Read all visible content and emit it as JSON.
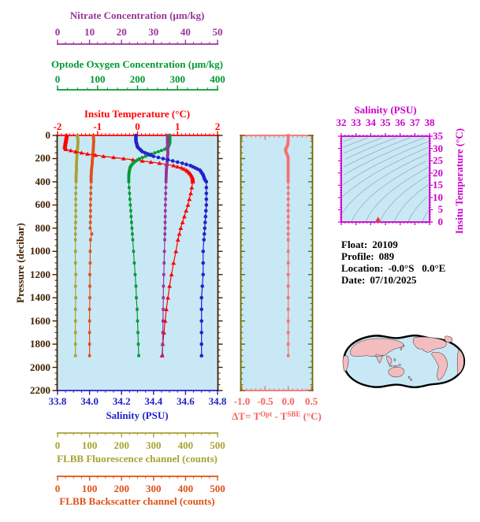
{
  "colors": {
    "temperature": "#FF0000",
    "salinity": "#2222CC",
    "oxygen": "#009933",
    "nitrate": "#993399",
    "fluorescence": "#A9A232",
    "backscatter": "#E05115",
    "pressure_axis": "#402000",
    "delta": "#F7706E",
    "delta_title": "#F4625F",
    "delta_frame": "#6A6A00",
    "magenta": "#CC00CC",
    "plot_bg": "#C9E8F6",
    "land": "#F3BCBE",
    "contour": "#9FB6BE",
    "ts_marker": "#E73558",
    "map_outline": "#000000"
  },
  "axes": {
    "nitrate": {
      "title": "Nitrate Concentration (μm/kg)",
      "ticks": [
        "0",
        "10",
        "20",
        "30",
        "40",
        "50"
      ],
      "range": [
        0,
        50
      ],
      "minor_step": 2.5
    },
    "oxygen": {
      "title": "Optode Oxygen Concentration (μm/kg)",
      "ticks": [
        "0",
        "100",
        "200",
        "300",
        "400"
      ],
      "range": [
        0,
        400
      ],
      "minor_step": 25
    },
    "temperature": {
      "title": "Insitu Temperature (°C)",
      "ticks": [
        "-2",
        "-1",
        "0",
        "1",
        "2"
      ],
      "range": [
        -2,
        2
      ],
      "minor_step": 0.1
    },
    "salinity": {
      "title": "Salinity (PSU)",
      "ticks": [
        "33.8",
        "34.0",
        "34.2",
        "34.4",
        "34.6",
        "34.8"
      ],
      "range": [
        33.8,
        34.8
      ],
      "minor_step": 0.05
    },
    "pressure": {
      "title": "Pressure (decibar)",
      "ticks": [
        "0",
        "200",
        "400",
        "600",
        "800",
        "1000",
        "1200",
        "1400",
        "1600",
        "1800",
        "2000",
        "2200"
      ],
      "range": [
        0,
        2200
      ],
      "minor_step": 50
    },
    "fluorescence": {
      "title": "FLBB Fluorescence channel (counts)",
      "ticks": [
        "0",
        "100",
        "200",
        "300",
        "400",
        "500"
      ],
      "range": [
        0,
        500
      ],
      "minor_step": 25
    },
    "backscatter": {
      "title": "FLBB Backscatter channel (counts)",
      "ticks": [
        "0",
        "100",
        "200",
        "300",
        "400",
        "500"
      ],
      "range": [
        0,
        500
      ],
      "minor_step": 25
    },
    "delta": {
      "title_parts": {
        "p1": "ΔT= T",
        "sup1": "Opt",
        "p2": " - T",
        "sup2": "SBE",
        "p3": " (°C)"
      },
      "ticks": [
        "-1.0",
        "-0.5",
        "0.0",
        "0.5"
      ],
      "range": [
        -1.0,
        0.5
      ],
      "minor_step": 0.1
    },
    "ts_salinity": {
      "title": "Salinity (PSU)",
      "ticks": [
        "32",
        "33",
        "34",
        "35",
        "36",
        "37",
        "38"
      ],
      "range": [
        32,
        38
      ],
      "minor_step": 0.25
    },
    "ts_temperature": {
      "title": "Insitu Temperature (°C)",
      "ticks": [
        "0",
        "5",
        "10",
        "15",
        "20",
        "25",
        "30",
        "35"
      ],
      "range": [
        0,
        35
      ],
      "minor_step": 1
    }
  },
  "float_info": {
    "rows": [
      {
        "label": "Float:",
        "value": "20109"
      },
      {
        "label": "Profile:",
        "value": "089"
      },
      {
        "label": "Location:",
        "value": "-0.0°S   0.0°E"
      },
      {
        "label": "Date:",
        "value": "07/10/2025"
      }
    ]
  },
  "chart_data": [
    {
      "type": "line",
      "title": "Float profile vs pressure",
      "y_axis": {
        "label": "Pressure (decibar)",
        "range": [
          0,
          2200
        ]
      },
      "legend_position": "none",
      "grid": false,
      "series": [
        {
          "name": "FLBB Fluorescence channel (counts)",
          "color_key": "fluorescence",
          "marker": "square",
          "x_range": [
            0,
            500
          ],
          "points": [
            [
              0,
              62
            ],
            [
              50,
              64
            ],
            [
              100,
              63
            ],
            [
              150,
              61
            ],
            [
              200,
              60
            ],
            [
              250,
              59
            ],
            [
              300,
              59
            ],
            [
              350,
              58
            ],
            [
              400,
              58
            ],
            [
              500,
              57
            ],
            [
              600,
              57
            ],
            [
              700,
              57
            ],
            [
              800,
              56
            ],
            [
              900,
              56
            ],
            [
              1000,
              56
            ],
            [
              1100,
              56
            ],
            [
              1200,
              57
            ],
            [
              1300,
              56
            ],
            [
              1400,
              57
            ],
            [
              1500,
              56
            ],
            [
              1600,
              56
            ],
            [
              1700,
              56
            ],
            [
              1800,
              56
            ],
            [
              1900,
              56
            ]
          ]
        },
        {
          "name": "FLBB Backscatter channel (counts)",
          "color_key": "backscatter",
          "marker": "square",
          "x_range": [
            0,
            500
          ],
          "points": [
            [
              0,
              112
            ],
            [
              50,
              113
            ],
            [
              100,
              112
            ],
            [
              150,
              111
            ],
            [
              200,
              109
            ],
            [
              250,
              108
            ],
            [
              300,
              106
            ],
            [
              350,
              105
            ],
            [
              400,
              105
            ],
            [
              500,
              104
            ],
            [
              600,
              103
            ],
            [
              700,
              103
            ],
            [
              800,
              102
            ],
            [
              850,
              107
            ],
            [
              900,
              103
            ],
            [
              1000,
              102
            ],
            [
              1100,
              102
            ],
            [
              1200,
              101
            ],
            [
              1300,
              101
            ],
            [
              1400,
              101
            ],
            [
              1500,
              100
            ],
            [
              1600,
              100
            ],
            [
              1700,
              100
            ],
            [
              1800,
              100
            ],
            [
              1900,
              100
            ]
          ]
        },
        {
          "name": "Insitu Temperature (°C)",
          "color_key": "temperature",
          "marker": "triangle",
          "x_range": [
            -2,
            2
          ],
          "points": [
            [
              0,
              -1.77
            ],
            [
              20,
              -1.78
            ],
            [
              40,
              -1.79
            ],
            [
              60,
              -1.8
            ],
            [
              80,
              -1.81
            ],
            [
              100,
              -1.82
            ],
            [
              120,
              -1.79
            ],
            [
              140,
              -1.55
            ],
            [
              160,
              -1.25
            ],
            [
              180,
              -0.85
            ],
            [
              200,
              -0.35
            ],
            [
              220,
              0.12
            ],
            [
              240,
              0.55
            ],
            [
              260,
              0.9
            ],
            [
              280,
              1.1
            ],
            [
              300,
              1.22
            ],
            [
              320,
              1.29
            ],
            [
              340,
              1.34
            ],
            [
              360,
              1.37
            ],
            [
              380,
              1.38
            ],
            [
              400,
              1.38
            ],
            [
              500,
              1.33
            ],
            [
              600,
              1.26
            ],
            [
              700,
              1.17
            ],
            [
              800,
              1.08
            ],
            [
              900,
              1.01
            ],
            [
              1000,
              0.96
            ],
            [
              1100,
              0.9
            ],
            [
              1200,
              0.85
            ],
            [
              1300,
              0.8
            ],
            [
              1400,
              0.76
            ],
            [
              1500,
              0.72
            ],
            [
              1600,
              0.69
            ],
            [
              1700,
              0.66
            ],
            [
              1800,
              0.63
            ],
            [
              1900,
              0.61
            ]
          ]
        },
        {
          "name": "Optode Oxygen Concentration (μm/kg)",
          "color_key": "oxygen",
          "marker": "square",
          "x_range": [
            0,
            400
          ],
          "points": [
            [
              0,
              281
            ],
            [
              60,
              281
            ],
            [
              100,
              277
            ],
            [
              120,
              268
            ],
            [
              140,
              252
            ],
            [
              160,
              235
            ],
            [
              180,
              220
            ],
            [
              200,
              205
            ],
            [
              220,
              196
            ],
            [
              240,
              189
            ],
            [
              260,
              184
            ],
            [
              280,
              181
            ],
            [
              300,
              180
            ],
            [
              340,
              178
            ],
            [
              400,
              178
            ],
            [
              500,
              180
            ],
            [
              600,
              182
            ],
            [
              700,
              184
            ],
            [
              800,
              186
            ],
            [
              900,
              188
            ],
            [
              1000,
              190
            ],
            [
              1100,
              192
            ],
            [
              1200,
              194
            ],
            [
              1300,
              196
            ],
            [
              1400,
              197
            ],
            [
              1500,
              199
            ],
            [
              1600,
              200
            ],
            [
              1700,
              201
            ],
            [
              1800,
              202
            ],
            [
              1900,
              203
            ]
          ]
        },
        {
          "name": "Nitrate Concentration (μm/kg)",
          "color_key": "nitrate",
          "marker": "square",
          "x_range": [
            0,
            50
          ],
          "points": [
            [
              0,
              34.3
            ],
            [
              100,
              34.4
            ],
            [
              150,
              34.5
            ],
            [
              200,
              34.3
            ],
            [
              250,
              34.2
            ],
            [
              300,
              34.0
            ],
            [
              350,
              33.95
            ],
            [
              400,
              33.9
            ],
            [
              500,
              33.8
            ],
            [
              600,
              33.7
            ],
            [
              700,
              33.65
            ],
            [
              800,
              33.6
            ],
            [
              900,
              33.5
            ],
            [
              1000,
              33.4
            ],
            [
              1100,
              33.3
            ],
            [
              1200,
              33.2
            ],
            [
              1300,
              33.1
            ],
            [
              1400,
              33.05
            ],
            [
              1500,
              33.0
            ],
            [
              1600,
              32.95
            ],
            [
              1700,
              32.9
            ],
            [
              1800,
              32.85
            ],
            [
              1900,
              32.8
            ]
          ]
        },
        {
          "name": "Salinity (PSU)",
          "color_key": "salinity",
          "marker": "circle",
          "x_range": [
            33.8,
            34.8
          ],
          "points": [
            [
              0,
              34.29
            ],
            [
              50,
              34.29
            ],
            [
              100,
              34.3
            ],
            [
              140,
              34.33
            ],
            [
              180,
              34.4
            ],
            [
              200,
              34.46
            ],
            [
              220,
              34.52
            ],
            [
              240,
              34.58
            ],
            [
              260,
              34.63
            ],
            [
              280,
              34.66
            ],
            [
              300,
              34.69
            ],
            [
              340,
              34.71
            ],
            [
              380,
              34.72
            ],
            [
              400,
              34.73
            ],
            [
              600,
              34.73
            ],
            [
              800,
              34.72
            ],
            [
              1000,
              34.71
            ],
            [
              1200,
              34.71
            ],
            [
              1400,
              34.7
            ],
            [
              1600,
              34.7
            ],
            [
              1900,
              34.7
            ]
          ]
        }
      ]
    },
    {
      "type": "line",
      "title": "ΔT= TOpt - TSBE (°C) vs pressure",
      "x_axis": {
        "label": "ΔT= TOpt - TSBE (°C)",
        "range": [
          -1.0,
          0.5
        ]
      },
      "y_axis": {
        "label": "Pressure (decibar)",
        "range": [
          0,
          2200
        ]
      },
      "series": [
        {
          "name": "ΔT",
          "color_key": "delta",
          "marker": "square",
          "x_range": [
            -1.0,
            0.5
          ],
          "points": [
            [
              0,
              0
            ],
            [
              40,
              0
            ],
            [
              80,
              -0.01
            ],
            [
              100,
              -0.03
            ],
            [
              120,
              -0.06
            ],
            [
              140,
              -0.05
            ],
            [
              160,
              -0.03
            ],
            [
              180,
              -0.01
            ],
            [
              200,
              0
            ],
            [
              300,
              0
            ],
            [
              400,
              0
            ],
            [
              500,
              0
            ],
            [
              600,
              0
            ],
            [
              700,
              0
            ],
            [
              800,
              0
            ],
            [
              900,
              0
            ],
            [
              1000,
              0
            ],
            [
              1100,
              0
            ],
            [
              1200,
              0
            ],
            [
              1300,
              0
            ],
            [
              1400,
              0
            ],
            [
              1500,
              0
            ],
            [
              1600,
              0
            ],
            [
              1700,
              0
            ],
            [
              1800,
              0
            ],
            [
              1900,
              0
            ]
          ]
        }
      ]
    },
    {
      "type": "scatter",
      "title": "T-S diagram with sigma-theta isopycnal contours",
      "x_axis": {
        "label": "Salinity (PSU)",
        "range": [
          32,
          38
        ]
      },
      "y_axis": {
        "label": "Insitu Temperature (°C)",
        "range": [
          0,
          35
        ]
      },
      "contours": {
        "kind": "isopycnals",
        "sigma_start": 19.25,
        "sigma_step": 0.75,
        "count": 15
      },
      "points": [
        [
          34.5,
          0.8
        ]
      ]
    }
  ]
}
